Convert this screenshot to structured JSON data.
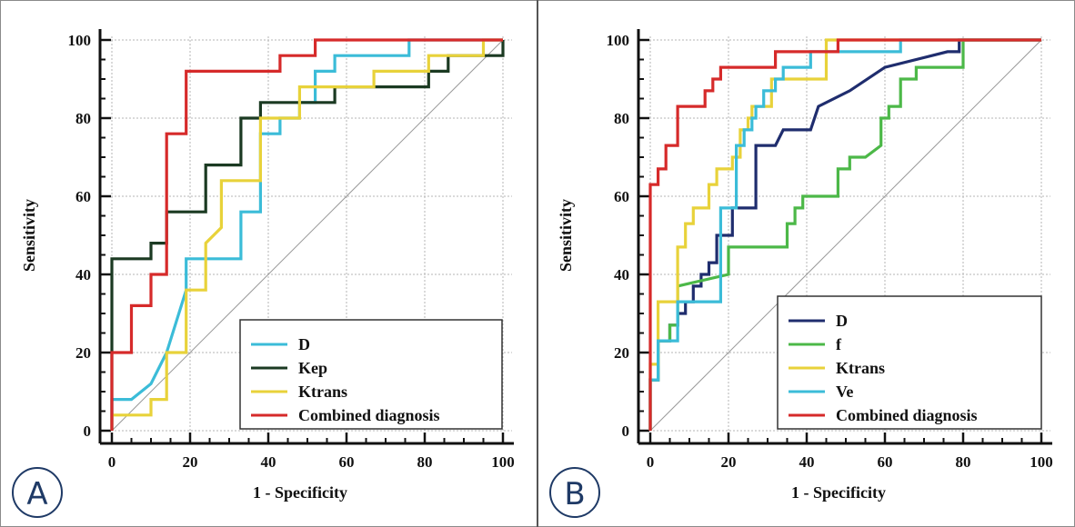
{
  "chart_data": [
    {
      "type": "line",
      "panel_label": "A",
      "title": "",
      "xlabel": "1 - Specificity",
      "ylabel": "Sensitivity",
      "xlim": [
        0,
        100
      ],
      "ylim": [
        0,
        100
      ],
      "xticks": [
        "0",
        "20",
        "40",
        "60",
        "80",
        "100"
      ],
      "yticks": [
        "0",
        "20",
        "40",
        "60",
        "80",
        "100"
      ],
      "grid": true,
      "legend_position": "bottom-right",
      "reference_line": {
        "from": [
          0,
          0
        ],
        "to": [
          100,
          100
        ],
        "color": "#9a9a9a"
      },
      "series": [
        {
          "name": "D",
          "color": "#3bbcd8",
          "x": [
            0,
            0,
            5,
            10,
            14,
            19,
            19,
            33,
            33,
            38,
            38,
            43,
            43,
            48,
            48,
            52,
            52,
            57,
            57,
            76,
            76,
            100
          ],
          "y": [
            0,
            8,
            8,
            12,
            20,
            36,
            44,
            44,
            56,
            56,
            76,
            76,
            80,
            80,
            84,
            84,
            92,
            92,
            96,
            96,
            100,
            100
          ]
        },
        {
          "name": "Kep",
          "color": "#1b3a22",
          "x": [
            0,
            0,
            10,
            10,
            14,
            14,
            24,
            24,
            33,
            33,
            38,
            38,
            57,
            57,
            81,
            81,
            86,
            86,
            100,
            100
          ],
          "y": [
            0,
            44,
            44,
            48,
            48,
            56,
            56,
            68,
            68,
            80,
            80,
            84,
            84,
            88,
            88,
            92,
            92,
            96,
            96,
            100
          ]
        },
        {
          "name": "Ktrans",
          "color": "#e8d23a",
          "x": [
            0,
            0,
            10,
            10,
            14,
            14,
            19,
            19,
            24,
            24,
            28,
            28,
            38,
            38,
            48,
            48,
            67,
            67,
            81,
            81,
            95,
            95,
            100
          ],
          "y": [
            0,
            4,
            4,
            8,
            8,
            20,
            20,
            36,
            36,
            48,
            52,
            64,
            64,
            80,
            80,
            88,
            88,
            92,
            92,
            96,
            96,
            100,
            100
          ]
        },
        {
          "name": "Combined diagnosis",
          "color": "#d62a2a",
          "x": [
            0,
            0,
            5,
            5,
            10,
            10,
            14,
            14,
            19,
            19,
            43,
            43,
            52,
            52,
            100
          ],
          "y": [
            0,
            20,
            20,
            32,
            32,
            40,
            40,
            76,
            76,
            92,
            92,
            96,
            96,
            100,
            100
          ]
        }
      ]
    },
    {
      "type": "line",
      "panel_label": "B",
      "title": "",
      "xlabel": "1 - Specificity",
      "ylabel": "Sensitivity",
      "xlim": [
        0,
        100
      ],
      "ylim": [
        0,
        100
      ],
      "xticks": [
        "0",
        "20",
        "40",
        "60",
        "80",
        "100"
      ],
      "yticks": [
        "0",
        "20",
        "40",
        "60",
        "80",
        "100"
      ],
      "grid": true,
      "legend_position": "bottom-right",
      "reference_line": {
        "from": [
          0,
          0
        ],
        "to": [
          100,
          100
        ],
        "color": "#9a9a9a"
      },
      "series": [
        {
          "name": "D",
          "color": "#1f2d6e",
          "x": [
            0,
            0,
            2,
            2,
            5,
            5,
            7,
            7,
            9,
            9,
            11,
            11,
            13,
            13,
            15,
            15,
            17,
            17,
            21,
            21,
            27,
            27,
            32,
            34,
            34,
            41,
            41,
            43,
            43,
            51,
            51,
            60,
            60,
            76,
            76,
            79,
            79,
            100
          ],
          "y": [
            0,
            13,
            13,
            23,
            23,
            27,
            27,
            30,
            30,
            33,
            33,
            37,
            37,
            40,
            40,
            43,
            43,
            50,
            50,
            57,
            57,
            73,
            73,
            77,
            77,
            77,
            77,
            83,
            83,
            87,
            87,
            93,
            93,
            97,
            97,
            97,
            100,
            100
          ]
        },
        {
          "name": "f",
          "color": "#4cb848",
          "x": [
            0,
            0,
            2,
            2,
            5,
            5,
            7,
            7,
            20,
            20,
            35,
            35,
            37,
            37,
            39,
            39,
            48,
            48,
            51,
            51,
            55,
            59,
            59,
            61,
            61,
            64,
            64,
            68,
            68,
            80,
            80,
            100
          ],
          "y": [
            0,
            13,
            13,
            23,
            23,
            27,
            27,
            37,
            40,
            47,
            47,
            53,
            53,
            57,
            57,
            60,
            60,
            67,
            67,
            70,
            70,
            73,
            80,
            80,
            83,
            83,
            90,
            90,
            93,
            93,
            100,
            100
          ]
        },
        {
          "name": "Ktrans",
          "color": "#e8d23a",
          "x": [
            0,
            0,
            2,
            2,
            7,
            7,
            9,
            9,
            11,
            11,
            15,
            15,
            17,
            17,
            21,
            21,
            23,
            23,
            25,
            25,
            26,
            26,
            31,
            31,
            36,
            36,
            45,
            45,
            100
          ],
          "y": [
            0,
            17,
            17,
            33,
            33,
            47,
            47,
            53,
            53,
            57,
            57,
            63,
            63,
            67,
            67,
            70,
            70,
            77,
            77,
            80,
            80,
            83,
            83,
            90,
            90,
            90,
            90,
            100,
            100
          ]
        },
        {
          "name": "Ve",
          "color": "#3bbcd8",
          "x": [
            0,
            0,
            2,
            2,
            7,
            7,
            18,
            18,
            22,
            22,
            24,
            24,
            26,
            26,
            27,
            27,
            29,
            29,
            32,
            32,
            34,
            34,
            37,
            37,
            41,
            41,
            52,
            52,
            64,
            64,
            100
          ],
          "y": [
            0,
            13,
            13,
            23,
            23,
            33,
            33,
            57,
            57,
            73,
            73,
            77,
            77,
            80,
            80,
            83,
            83,
            87,
            87,
            90,
            90,
            93,
            93,
            93,
            93,
            97,
            97,
            97,
            97,
            100,
            100
          ]
        },
        {
          "name": "Combined diagnosis",
          "color": "#d62a2a",
          "x": [
            0,
            0,
            2,
            2,
            4,
            4,
            7,
            7,
            14,
            14,
            16,
            16,
            18,
            18,
            32,
            32,
            48,
            48,
            100
          ],
          "y": [
            0,
            63,
            63,
            67,
            67,
            73,
            73,
            83,
            83,
            87,
            87,
            90,
            90,
            93,
            93,
            97,
            97,
            100,
            100
          ]
        }
      ]
    }
  ]
}
